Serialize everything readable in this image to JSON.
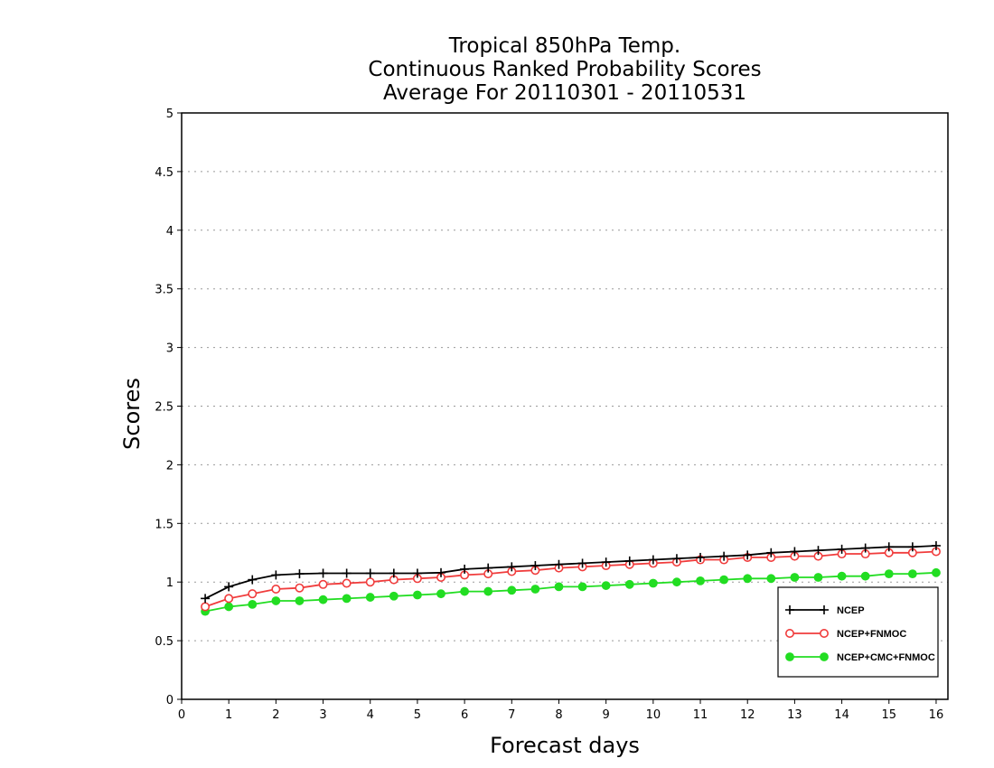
{
  "chart_data": {
    "type": "line",
    "title": [
      "Tropical 850hPa Temp.",
      "Continuous Ranked Probability Scores",
      "Average For 20110301 - 20110531"
    ],
    "xlabel": "Forecast days",
    "ylabel": "Scores",
    "xlim": [
      0,
      16.25
    ],
    "ylim": [
      0,
      5
    ],
    "x_ticks": [
      "0",
      "1",
      "2",
      "3",
      "4",
      "5",
      "6",
      "7",
      "8",
      "9",
      "10",
      "11",
      "12",
      "13",
      "14",
      "15",
      "16"
    ],
    "y_ticks": [
      "0",
      "0.5",
      "1",
      "1.5",
      "2",
      "2.5",
      "3",
      "3.5",
      "4",
      "4.5",
      "5"
    ],
    "grid": "horizontal dotted",
    "legend_position": "bottom-right",
    "x": [
      0.5,
      1,
      1.5,
      2,
      2.5,
      3,
      3.5,
      4,
      4.5,
      5,
      5.5,
      6,
      6.5,
      7,
      7.5,
      8,
      8.5,
      9,
      9.5,
      10,
      10.5,
      11,
      11.5,
      12,
      12.5,
      13,
      13.5,
      14,
      14.5,
      15,
      15.5,
      16
    ],
    "series": [
      {
        "name": "NCEP",
        "color": "#000000",
        "marker": "plus",
        "values": [
          0.86,
          0.96,
          1.02,
          1.06,
          1.07,
          1.075,
          1.075,
          1.075,
          1.075,
          1.075,
          1.08,
          1.11,
          1.12,
          1.13,
          1.14,
          1.15,
          1.16,
          1.17,
          1.18,
          1.19,
          1.2,
          1.21,
          1.22,
          1.23,
          1.25,
          1.26,
          1.27,
          1.28,
          1.29,
          1.3,
          1.3,
          1.31
        ]
      },
      {
        "name": "NCEP+FNMOC",
        "color": "#f03c3c",
        "marker": "open-circle",
        "values": [
          0.79,
          0.86,
          0.9,
          0.94,
          0.95,
          0.98,
          0.99,
          1.0,
          1.02,
          1.03,
          1.04,
          1.06,
          1.07,
          1.09,
          1.1,
          1.12,
          1.13,
          1.14,
          1.15,
          1.16,
          1.17,
          1.19,
          1.19,
          1.21,
          1.21,
          1.22,
          1.22,
          1.24,
          1.24,
          1.25,
          1.25,
          1.26
        ]
      },
      {
        "name": "NCEP+CMC+FNMOC",
        "color": "#22dd22",
        "marker": "filled-circle",
        "values": [
          0.75,
          0.79,
          0.81,
          0.84,
          0.84,
          0.85,
          0.86,
          0.87,
          0.88,
          0.89,
          0.9,
          0.92,
          0.92,
          0.93,
          0.94,
          0.96,
          0.96,
          0.97,
          0.98,
          0.99,
          1.0,
          1.01,
          1.02,
          1.03,
          1.03,
          1.04,
          1.04,
          1.05,
          1.05,
          1.07,
          1.07,
          1.08
        ]
      }
    ]
  }
}
